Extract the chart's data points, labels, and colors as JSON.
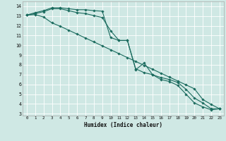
{
  "xlabel": "Humidex (Indice chaleur)",
  "ylabel": "",
  "bg_color": "#cfe8e4",
  "line_color": "#1a6b5e",
  "grid_color": "#ffffff",
  "xlim": [
    -0.5,
    23.5
  ],
  "ylim": [
    2.8,
    14.5
  ],
  "xticks": [
    0,
    1,
    2,
    3,
    4,
    5,
    6,
    7,
    8,
    9,
    10,
    11,
    12,
    13,
    14,
    15,
    16,
    17,
    18,
    19,
    20,
    21,
    22,
    23
  ],
  "yticks": [
    3,
    4,
    5,
    6,
    7,
    8,
    9,
    10,
    11,
    12,
    13,
    14
  ],
  "line1_x": [
    0,
    1,
    2,
    3,
    4,
    5,
    6,
    7,
    8,
    9,
    10,
    11,
    12,
    13,
    14,
    15,
    16,
    17,
    18,
    19,
    20,
    21,
    22,
    23
  ],
  "line1_y": [
    13.1,
    13.35,
    13.55,
    13.85,
    13.85,
    13.75,
    13.65,
    13.65,
    13.55,
    13.5,
    10.8,
    10.5,
    10.5,
    7.5,
    8.2,
    7.0,
    6.5,
    6.3,
    5.9,
    5.0,
    4.1,
    3.7,
    3.4,
    3.5
  ],
  "line2_x": [
    0,
    1,
    2,
    3,
    4,
    5,
    6,
    7,
    8,
    9,
    10,
    11,
    12,
    13,
    14,
    15,
    16,
    17,
    18,
    19,
    20,
    21,
    22,
    23
  ],
  "line2_y": [
    13.1,
    13.25,
    13.45,
    13.75,
    13.75,
    13.55,
    13.35,
    13.25,
    13.05,
    12.85,
    11.5,
    10.5,
    10.5,
    7.6,
    7.2,
    7.0,
    6.7,
    6.5,
    6.2,
    5.5,
    4.6,
    4.1,
    3.5,
    3.5
  ],
  "line3_x": [
    0,
    1,
    2,
    3,
    4,
    5,
    6,
    7,
    8,
    9,
    10,
    11,
    12,
    13,
    14,
    15,
    16,
    17,
    18,
    19,
    20,
    21,
    22,
    23
  ],
  "line3_y": [
    13.1,
    13.15,
    12.9,
    12.3,
    11.95,
    11.55,
    11.15,
    10.75,
    10.35,
    9.95,
    9.55,
    9.15,
    8.75,
    8.35,
    7.95,
    7.55,
    7.15,
    6.75,
    6.35,
    5.95,
    5.55,
    4.45,
    3.95,
    3.5
  ]
}
